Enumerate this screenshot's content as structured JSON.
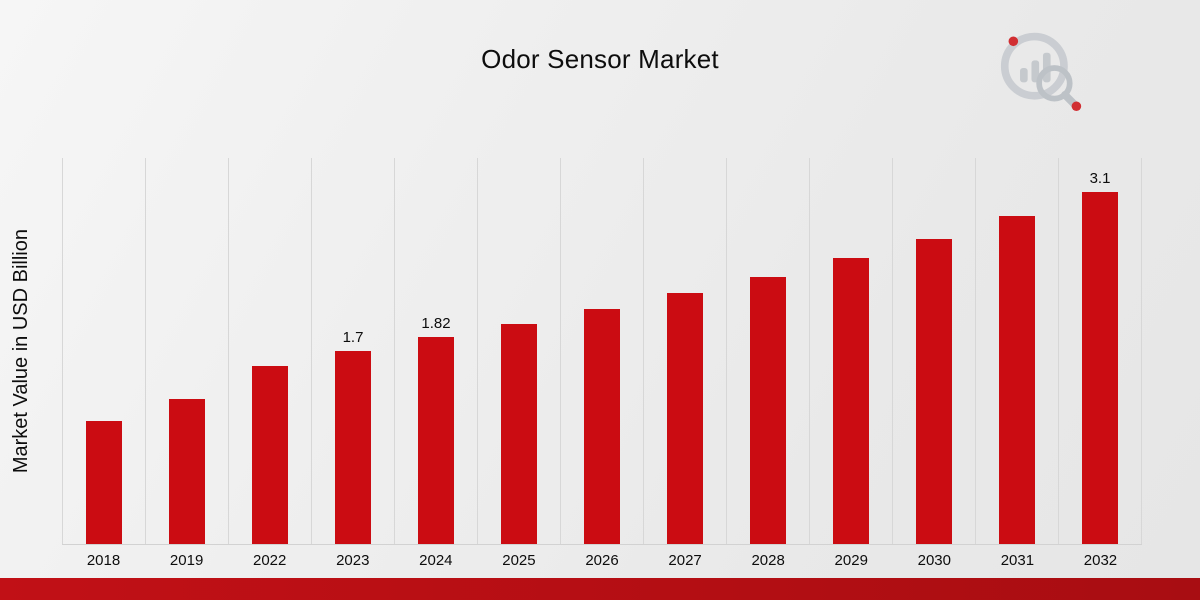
{
  "title": "Odor Sensor Market",
  "ylabel": "Market Value in USD Billion",
  "colors": {
    "bar": "#cb0c12",
    "bottom_strip": "#b30e13",
    "grid": "#d7d7d7",
    "background": "#ededed"
  },
  "branding": {
    "logo_name": "market-research-chart-magnifier-logo"
  },
  "chart_data": {
    "type": "bar",
    "title": "Odor Sensor Market",
    "xlabel": "",
    "ylabel": "Market Value in USD Billion",
    "categories": [
      "2018",
      "2019",
      "2022",
      "2023",
      "2024",
      "2025",
      "2026",
      "2027",
      "2028",
      "2029",
      "2030",
      "2031",
      "2032"
    ],
    "values": [
      1.08,
      1.28,
      1.57,
      1.7,
      1.82,
      1.94,
      2.07,
      2.21,
      2.35,
      2.52,
      2.69,
      2.89,
      3.1
    ],
    "data_labels": {
      "2023": "1.7",
      "2024": "1.82",
      "2032": "3.1"
    },
    "ylim": [
      0,
      3.4
    ],
    "grid": "vertical",
    "legend": "none",
    "bar_color": "#cb0c12"
  }
}
